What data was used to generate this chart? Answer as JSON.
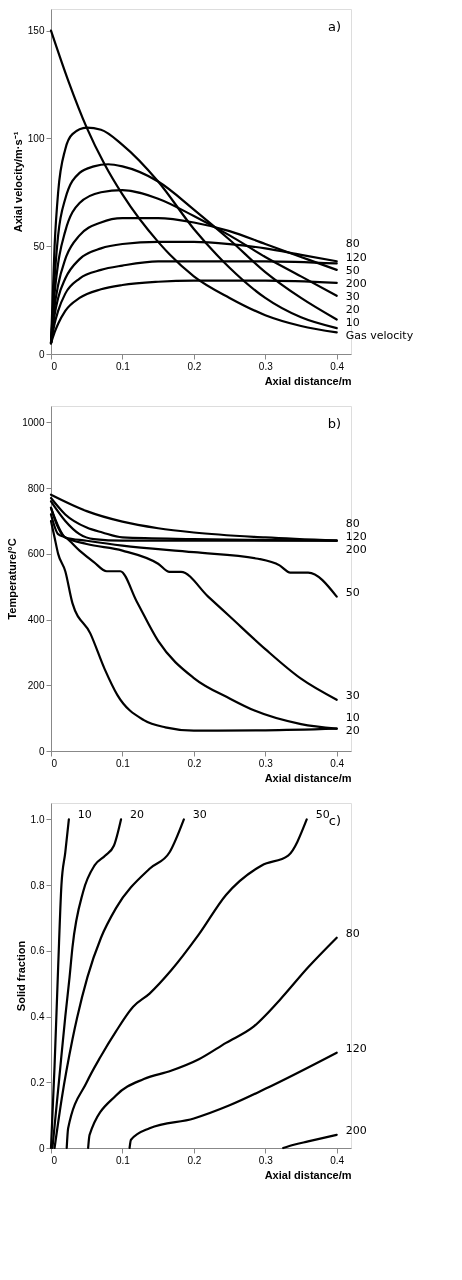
{
  "chart_data": [
    {
      "type": "line",
      "xlabel": "Axial distance/m",
      "ylabel": "Axial velocity/m·s⁻¹",
      "xlim": [
        0,
        0.42
      ],
      "ylim": [
        0,
        160
      ],
      "xticks": [
        0,
        0.1,
        0.2,
        0.3,
        0.4
      ],
      "yticks": [
        0,
        50,
        100,
        150
      ],
      "grid": false,
      "line_style": "solid",
      "annotations": [
        "a)"
      ],
      "series": [
        {
          "name": "Gas velocity",
          "color": "#000000",
          "x": [
            0,
            0.025,
            0.05,
            0.075,
            0.1,
            0.15,
            0.2,
            0.25,
            0.3,
            0.35,
            0.4
          ],
          "values": [
            150,
            126,
            105,
            88,
            74,
            52,
            36,
            26,
            18,
            13,
            10
          ]
        },
        {
          "name": "10",
          "color": "#000000",
          "x": [
            0,
            0.005,
            0.01,
            0.02,
            0.03,
            0.05,
            0.07,
            0.1,
            0.15,
            0.2,
            0.25,
            0.3,
            0.35,
            0.4
          ],
          "values": [
            5,
            50,
            75,
            95,
            102,
            105,
            104,
            97,
            80,
            58,
            40,
            26,
            17,
            12
          ]
        },
        {
          "name": "20",
          "color": "#000000",
          "x": [
            0,
            0.005,
            0.01,
            0.02,
            0.04,
            0.06,
            0.08,
            0.1,
            0.15,
            0.2,
            0.25,
            0.3,
            0.35,
            0.4
          ],
          "values": [
            5,
            35,
            55,
            72,
            84,
            87,
            88,
            87,
            80,
            67,
            53,
            38,
            26,
            16
          ]
        },
        {
          "name": "30",
          "color": "#000000",
          "x": [
            0,
            0.005,
            0.01,
            0.02,
            0.04,
            0.07,
            0.1,
            0.15,
            0.2,
            0.25,
            0.3,
            0.35,
            0.4
          ],
          "values": [
            5,
            28,
            42,
            57,
            70,
            75,
            76,
            72,
            64,
            55,
            45,
            36,
            27
          ]
        },
        {
          "name": "50",
          "color": "#000000",
          "x": [
            0,
            0.005,
            0.01,
            0.02,
            0.04,
            0.07,
            0.1,
            0.15,
            0.2,
            0.25,
            0.3,
            0.35,
            0.4
          ],
          "values": [
            5,
            22,
            32,
            44,
            55,
            61,
            63,
            63,
            61,
            57,
            51,
            45,
            39
          ]
        },
        {
          "name": "80",
          "color": "#000000",
          "x": [
            0,
            0.005,
            0.01,
            0.02,
            0.04,
            0.07,
            0.1,
            0.15,
            0.2,
            0.25,
            0.3,
            0.35,
            0.4
          ],
          "values": [
            5,
            18,
            26,
            35,
            44,
            49,
            51,
            52,
            52,
            51,
            49,
            46,
            43
          ]
        },
        {
          "name": "120",
          "color": "#000000",
          "x": [
            0,
            0.005,
            0.01,
            0.02,
            0.04,
            0.07,
            0.1,
            0.15,
            0.2,
            0.3,
            0.4
          ],
          "values": [
            5,
            14,
            20,
            28,
            35,
            39,
            41,
            43,
            43,
            43,
            42
          ]
        },
        {
          "name": "200",
          "color": "#000000",
          "x": [
            0,
            0.005,
            0.01,
            0.02,
            0.04,
            0.07,
            0.1,
            0.15,
            0.2,
            0.3,
            0.4
          ],
          "values": [
            5,
            10,
            14,
            20,
            26,
            30,
            32,
            33.5,
            34,
            34,
            33
          ]
        }
      ]
    },
    {
      "type": "line",
      "xlabel": "Axial distance/m",
      "ylabel": "Temperature/°C",
      "xlim": [
        0,
        0.42
      ],
      "ylim": [
        0,
        1050
      ],
      "xticks": [
        0,
        0.1,
        0.2,
        0.3,
        0.4
      ],
      "yticks": [
        0,
        200,
        400,
        600,
        800,
        1000
      ],
      "grid": false,
      "line_style": "solid",
      "annotations": [
        "b)"
      ],
      "series": [
        {
          "name": "10",
          "color": "#000000",
          "x": [
            0,
            0.005,
            0.01,
            0.02,
            0.03,
            0.055,
            0.075,
            0.093,
            0.13,
            0.16,
            0.2,
            0.3,
            0.4
          ],
          "values": [
            700,
            650,
            600,
            547,
            450,
            358,
            250,
            170,
            94,
            72,
            62,
            63,
            68
          ]
        },
        {
          "name": "20",
          "color": "#000000",
          "x": [
            0,
            0.01,
            0.02,
            0.04,
            0.06,
            0.078,
            0.097,
            0.12,
            0.15,
            0.2,
            0.25,
            0.285,
            0.35,
            0.4
          ],
          "values": [
            720,
            660,
            650,
            610,
            575,
            547,
            547,
            455,
            335,
            222,
            160,
            123,
            82,
            68
          ]
        },
        {
          "name": "30",
          "color": "#000000",
          "x": [
            0,
            0.02,
            0.05,
            0.1,
            0.15,
            0.166,
            0.182,
            0.22,
            0.25,
            0.3,
            0.35,
            0.4
          ],
          "values": [
            740,
            650,
            630,
            610,
            570,
            545,
            545,
            470,
            410,
            310,
            220,
            156
          ]
        },
        {
          "name": "50",
          "color": "#000000",
          "x": [
            0,
            0.01,
            0.02,
            0.05,
            0.1,
            0.2,
            0.29,
            0.32,
            0.335,
            0.36,
            0.4
          ],
          "values": [
            740,
            680,
            650,
            640,
            625,
            605,
            585,
            565,
            543,
            543,
            470
          ]
        },
        {
          "name": "80",
          "color": "#000000",
          "x": [
            0,
            0.02,
            0.04,
            0.06,
            0.1,
            0.2,
            0.3,
            0.4
          ],
          "values": [
            760,
            700,
            660,
            645,
            640,
            640,
            640,
            640
          ]
        },
        {
          "name": "120",
          "color": "#000000",
          "x": [
            0,
            0.02,
            0.05,
            0.072,
            0.1,
            0.2,
            0.3,
            0.4
          ],
          "values": [
            770,
            720,
            680,
            665,
            650,
            645,
            642,
            640
          ]
        },
        {
          "name": "200",
          "color": "#000000",
          "x": [
            0,
            0.05,
            0.1,
            0.15,
            0.2,
            0.3,
            0.4
          ],
          "values": [
            780,
            730,
            698,
            678,
            665,
            650,
            640
          ]
        }
      ]
    },
    {
      "type": "line",
      "xlabel": "Axial distance/m",
      "ylabel": "Solid fraction",
      "xlim": [
        0,
        0.42
      ],
      "ylim": [
        0,
        1.05
      ],
      "xticks": [
        0,
        0.1,
        0.2,
        0.3,
        0.4
      ],
      "yticks": [
        0,
        0.2,
        0.4,
        0.6,
        0.8,
        {
          "value": 1,
          "label": "1.0"
        }
      ],
      "grid": false,
      "line_style": "solid",
      "annotations": [
        "c)"
      ],
      "series": [
        {
          "name": "10",
          "color": "#000000",
          "x": [
            0,
            0.005,
            0.01,
            0.0146,
            0.02,
            0.025
          ],
          "values": [
            0,
            0.25,
            0.55,
            0.8,
            0.9,
            1.0
          ]
        },
        {
          "name": "20",
          "color": "#000000",
          "x": [
            0.002,
            0.011,
            0.02,
            0.026,
            0.03,
            0.045,
            0.061,
            0.076,
            0.088,
            0.098
          ],
          "values": [
            0,
            0.2,
            0.4,
            0.52,
            0.61,
            0.78,
            0.86,
            0.89,
            0.92,
            1.0
          ]
        },
        {
          "name": "30",
          "color": "#000000",
          "x": [
            0.005,
            0.015,
            0.03,
            0.051,
            0.07,
            0.091,
            0.138,
            0.166,
            0.186
          ],
          "values": [
            0,
            0.15,
            0.33,
            0.52,
            0.64,
            0.73,
            0.85,
            0.9,
            1.0
          ]
        },
        {
          "name": "50",
          "color": "#000000",
          "x": [
            0.022,
            0.024,
            0.05,
            0.07,
            0.091,
            0.115,
            0.138,
            0.168,
            0.207,
            0.245,
            0.295,
            0.332,
            0.358
          ],
          "values": [
            0,
            0.06,
            0.2,
            0.28,
            0.355,
            0.43,
            0.47,
            0.54,
            0.65,
            0.77,
            0.86,
            0.89,
            1.0
          ]
        },
        {
          "name": "80",
          "color": "#000000",
          "x": [
            0.052,
            0.054,
            0.091,
            0.13,
            0.168,
            0.207,
            0.245,
            0.284,
            0.32,
            0.36,
            0.4
          ],
          "values": [
            0,
            0.04,
            0.16,
            0.21,
            0.235,
            0.27,
            0.32,
            0.37,
            0.45,
            0.55,
            0.64
          ]
        },
        {
          "name": "120",
          "color": "#000000",
          "x": [
            0.11,
            0.112,
            0.138,
            0.2,
            0.25,
            0.3,
            0.4
          ],
          "values": [
            0,
            0.025,
            0.06,
            0.09,
            0.13,
            0.18,
            0.29
          ]
        },
        {
          "name": "200",
          "color": "#000000",
          "x": [
            0.325,
            0.34,
            0.36,
            0.38,
            0.4
          ],
          "values": [
            0,
            0.01,
            0.02,
            0.03,
            0.04
          ]
        }
      ]
    }
  ]
}
